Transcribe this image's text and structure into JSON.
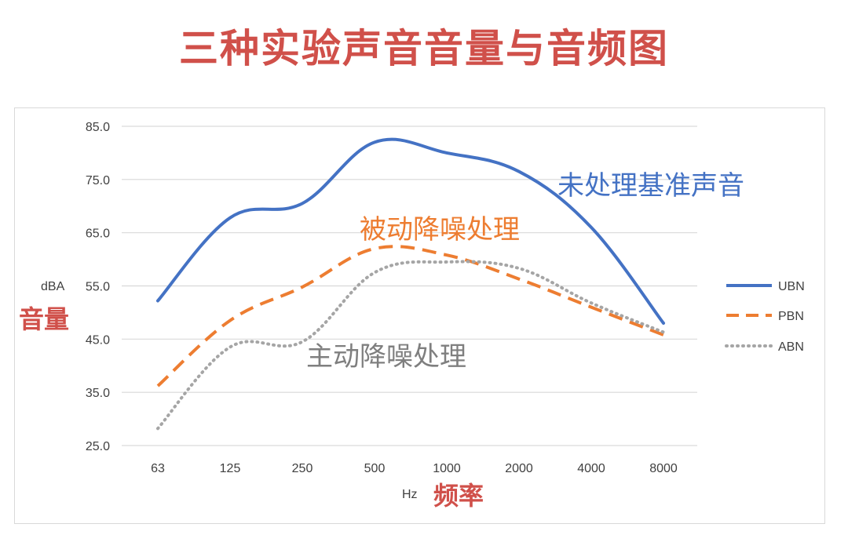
{
  "title": "三种实验声音音量与音频图",
  "colors": {
    "title": "#d0504a",
    "ubn": "#4472c4",
    "pbn": "#ed7d31",
    "abn": "#a5a5a5",
    "grid": "#d9d9d9",
    "axis_cn": "#d0504a"
  },
  "chart_data": {
    "type": "line",
    "categories": [
      "63",
      "125",
      "250",
      "500",
      "1000",
      "2000",
      "4000",
      "8000"
    ],
    "ylabel_unit": "dBA",
    "ylabel_cn": "音量",
    "xlabel_unit": "Hz",
    "xlabel_cn": "频率",
    "ylim": [
      25,
      85
    ],
    "yticks": [
      "25.0",
      "35.0",
      "45.0",
      "55.0",
      "65.0",
      "75.0",
      "85.0"
    ],
    "grid": true,
    "legend_position": "right",
    "series": [
      {
        "name": "UBN",
        "style": "solid",
        "values": [
          52.2,
          67.8,
          70.5,
          82.0,
          80.0,
          76.5,
          66.0,
          48.0
        ],
        "annotation": "未处理基准声音"
      },
      {
        "name": "PBN",
        "style": "dashed",
        "values": [
          36.2,
          48.5,
          54.8,
          62.0,
          60.8,
          56.3,
          51.0,
          45.8
        ],
        "annotation": "被动降噪处理"
      },
      {
        "name": "ABN",
        "style": "dotted",
        "values": [
          28.2,
          43.5,
          44.5,
          57.5,
          59.5,
          58.3,
          51.8,
          46.3
        ],
        "annotation": "主动降噪处理"
      }
    ]
  }
}
